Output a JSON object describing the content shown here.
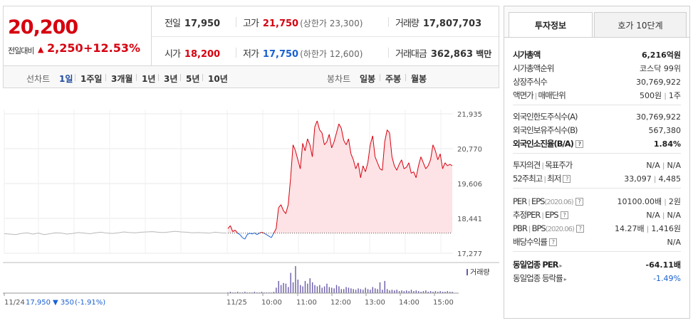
{
  "summary": {
    "price": "20,200",
    "change_label": "전일대비",
    "change_value": "2,250",
    "change_pct": "+12.53%",
    "prev_close_label": "전일",
    "prev_close": "17,950",
    "high_label": "고가",
    "high": "21,750",
    "upper_limit": "(상한가 23,300)",
    "volume_label": "거래량",
    "volume": "17,807,703",
    "open_label": "시가",
    "open": "18,200",
    "low_label": "저가",
    "low": "17,750",
    "lower_limit": "(하한가 12,600)",
    "turnover_label": "거래대금",
    "turnover": "362,863",
    "turnover_unit": "백만"
  },
  "period_tabs": {
    "line_label": "선차트",
    "items": [
      "1일",
      "1주일",
      "3개월",
      "1년",
      "3년",
      "5년",
      "10년"
    ],
    "selected": "1일",
    "candle_label": "봉차트",
    "candle_items": [
      "일봉",
      "주봉",
      "월봉"
    ]
  },
  "chart_data": {
    "type": "line",
    "y_ticks": [
      "21,935",
      "20,770",
      "19,606",
      "18,441",
      "17,277"
    ],
    "ylim": [
      17277,
      21935
    ],
    "x_ticks": [
      "11/24",
      "11/25",
      "10:00",
      "11:00",
      "12:00",
      "13:00",
      "14:00",
      "15:00"
    ],
    "prev_day_label": "11/24",
    "prev_day_close": "17,950",
    "prev_day_change": "▼ 350",
    "prev_day_pct": "(-1.91%)",
    "volume_legend": "거래량",
    "baseline": 17950,
    "prev_day_series": [
      17930,
      17920,
      17900,
      17940,
      17960,
      17920,
      17950,
      17900,
      17930,
      17960,
      17950,
      17920,
      17940,
      17970,
      17950,
      17930,
      17960,
      17980,
      17950,
      17940,
      17960,
      17990,
      17970,
      17960,
      17980,
      17990,
      18000,
      17980,
      17970,
      17990,
      18010,
      17990,
      17980,
      17960,
      17970,
      17960,
      17950,
      17980,
      17960,
      17950
    ],
    "today_series": [
      18100,
      18200,
      18000,
      18050,
      17950,
      17900,
      17800,
      17750,
      17900,
      17950,
      17920,
      17960,
      17900,
      17950,
      17980,
      17950,
      17900,
      17850,
      17800,
      17950,
      18100,
      18800,
      18900,
      18700,
      18600,
      18900,
      19800,
      20900,
      20700,
      20400,
      20100,
      20950,
      20700,
      21100,
      20900,
      20500,
      21500,
      21700,
      21400,
      21300,
      20900,
      21000,
      21250,
      20800,
      21000,
      21300,
      21600,
      21450,
      21050,
      20900,
      21100,
      20600,
      20400,
      20100,
      20300,
      19800,
      20200,
      20000,
      20300,
      20900,
      21200,
      20500,
      20300,
      20100,
      20050,
      21000,
      21400,
      21300,
      20500,
      20200,
      20050,
      20250,
      20400,
      20100,
      20150,
      20300,
      19950,
      20000,
      19800,
      20200,
      20500,
      20300,
      20100,
      20200,
      20400,
      20900,
      20700,
      20400,
      20600,
      20100,
      20300,
      20200,
      20250,
      20200
    ],
    "volume_bars": [
      1,
      2,
      1,
      1,
      2,
      1,
      1,
      2,
      1,
      1,
      1,
      2,
      1,
      1,
      2,
      1,
      1,
      1,
      1,
      2,
      8,
      18,
      12,
      15,
      14,
      9,
      30,
      16,
      40,
      20,
      12,
      10,
      18,
      14,
      22,
      16,
      12,
      10,
      12,
      8,
      10,
      14,
      9,
      8,
      7,
      12,
      10,
      6,
      6,
      9,
      8,
      7,
      6,
      5,
      7,
      6,
      5,
      8,
      6,
      5,
      9,
      7,
      6,
      16,
      5,
      18,
      6,
      4,
      5,
      4,
      5,
      3,
      4,
      3,
      4,
      3,
      5,
      3,
      4,
      3,
      2,
      3,
      4,
      2,
      3,
      2,
      3,
      2,
      3,
      2,
      2,
      3,
      2,
      2
    ]
  },
  "right_panel": {
    "tab_active": "투자정보",
    "tab_other": "호가 10단계",
    "market_cap_label": "시가총액",
    "market_cap": "6,216억원",
    "cap_rank_label": "시가총액순위",
    "cap_rank": "코스닥 99위",
    "shares_label": "상장주식수",
    "shares": "30,769,922",
    "par_label": "액면가",
    "trade_unit_label": "매매단위",
    "par_value": "500원",
    "trade_unit": "1주",
    "foreign_limit_label": "외국인한도주식수(A)",
    "foreign_limit": "30,769,922",
    "foreign_hold_label": "외국인보유주식수(B)",
    "foreign_hold": "567,380",
    "foreign_ratio_label": "외국인소진율(B/A)",
    "foreign_ratio": "1.84%",
    "opinion_label": "투자의견",
    "target_label": "목표주가",
    "opinion": "N/A",
    "target": "N/A",
    "week52_high_label": "52주최고",
    "week52_low_label": "최저",
    "week52_high": "33,097",
    "week52_low": "4,485",
    "per_label": "PER",
    "eps_label": "EPS",
    "period": "(2020.06)",
    "per": "10100.00배",
    "eps": "2원",
    "est_per_label": "추정PER",
    "est_eps_label": "EPS",
    "est_per": "N/A",
    "est_eps": "N/A",
    "pbr_label": "PBR",
    "bps_label": "BPS",
    "pbr": "14.27배",
    "bps": "1,416원",
    "div_label": "배당수익률",
    "div": "N/A",
    "sector_per_label": "동일업종 PER",
    "sector_per": "-64.11배",
    "sector_rate_label": "동일업종 등락률",
    "sector_rate": "-1.49%"
  }
}
